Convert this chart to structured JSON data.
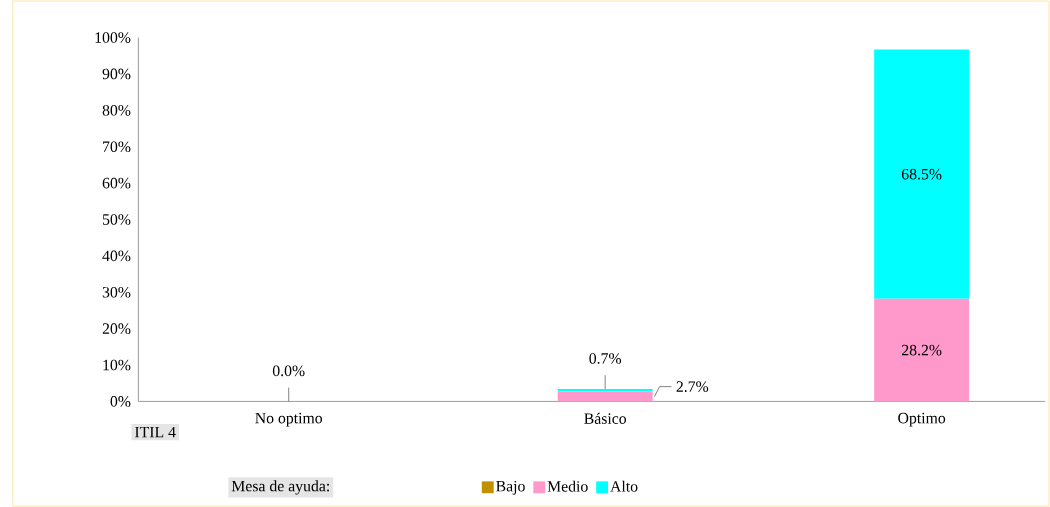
{
  "chart_data": {
    "type": "bar",
    "stacked": true,
    "xlabel": "ITIL 4",
    "legend_title": "Mesa de ayuda:",
    "legend": "bottom",
    "categories": [
      "No optimo",
      "Básico",
      "Optimo"
    ],
    "series": [
      {
        "name": "Bajo",
        "color": "#bf9000",
        "values": [
          0,
          0,
          0
        ],
        "value_labels": [
          "0.0%",
          null,
          null
        ]
      },
      {
        "name": "Medio",
        "color": "#ff99cc",
        "values": [
          0,
          2.7,
          28.2
        ],
        "value_labels": [
          null,
          "2.7%",
          "28.2%"
        ]
      },
      {
        "name": "Alto",
        "color": "#00ffff",
        "values": [
          0,
          0.7,
          68.5
        ],
        "value_labels": [
          null,
          "0.7%",
          "68.5%"
        ]
      }
    ],
    "ylim": [
      0,
      100
    ],
    "yticks": [
      {
        "value": 0,
        "label": "0%"
      },
      {
        "value": 10,
        "label": "10%"
      },
      {
        "value": 20,
        "label": "20%"
      },
      {
        "value": 30,
        "label": "30%"
      },
      {
        "value": 40,
        "label": "40%"
      },
      {
        "value": 50,
        "label": "50%"
      },
      {
        "value": 60,
        "label": "60%"
      },
      {
        "value": 70,
        "label": "70%"
      },
      {
        "value": 80,
        "label": "80%"
      },
      {
        "value": 90,
        "label": "90%"
      },
      {
        "value": 100,
        "label": "100%"
      }
    ]
  }
}
